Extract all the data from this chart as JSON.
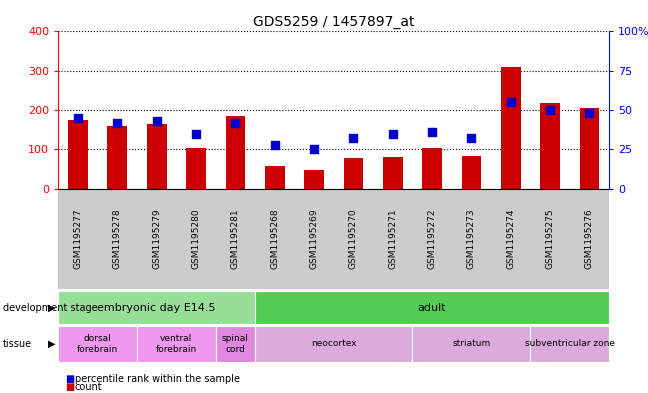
{
  "title": "GDS5259 / 1457897_at",
  "samples": [
    "GSM1195277",
    "GSM1195278",
    "GSM1195279",
    "GSM1195280",
    "GSM1195281",
    "GSM1195268",
    "GSM1195269",
    "GSM1195270",
    "GSM1195271",
    "GSM1195272",
    "GSM1195273",
    "GSM1195274",
    "GSM1195275",
    "GSM1195276"
  ],
  "counts": [
    175,
    160,
    165,
    103,
    185,
    57,
    48,
    78,
    80,
    103,
    83,
    310,
    218,
    205
  ],
  "percentiles": [
    45,
    42,
    43,
    35,
    42,
    28,
    25,
    32,
    35,
    36,
    32,
    55,
    50,
    48
  ],
  "ylim_left": [
    0,
    400
  ],
  "ylim_right": [
    0,
    100
  ],
  "yticks_left": [
    0,
    100,
    200,
    300,
    400
  ],
  "yticks_right": [
    0,
    25,
    50,
    75,
    100
  ],
  "ytick_labels_right": [
    "0",
    "25",
    "50",
    "75",
    "100%"
  ],
  "bar_color": "#cc0000",
  "dot_color": "#0000cc",
  "dev_stage_groups": [
    {
      "label": "embryonic day E14.5",
      "start": 0,
      "end": 5,
      "color": "#99dd99"
    },
    {
      "label": "adult",
      "start": 5,
      "end": 14,
      "color": "#55cc55"
    }
  ],
  "tissue_groups": [
    {
      "label": "dorsal\nforebrain",
      "start": 0,
      "end": 2,
      "color": "#ee99ee"
    },
    {
      "label": "ventral\nforebrain",
      "start": 2,
      "end": 4,
      "color": "#ee99ee"
    },
    {
      "label": "spinal\ncord",
      "start": 4,
      "end": 5,
      "color": "#dd88dd"
    },
    {
      "label": "neocortex",
      "start": 5,
      "end": 9,
      "color": "#ddaadd"
    },
    {
      "label": "striatum",
      "start": 9,
      "end": 12,
      "color": "#ddaadd"
    },
    {
      "label": "subventricular zone",
      "start": 12,
      "end": 14,
      "color": "#ddaadd"
    }
  ],
  "legend_count_color": "#cc0000",
  "legend_pct_color": "#0000cc",
  "tick_bg_color": "#cccccc",
  "plot_bg": "#ffffff",
  "fig_bg": "#ffffff"
}
